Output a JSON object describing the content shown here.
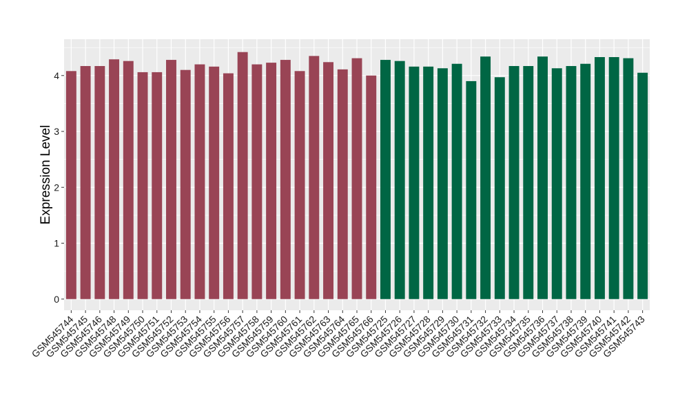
{
  "chart_data": {
    "type": "bar",
    "title": "",
    "xlabel": "",
    "ylabel": "Expression Level",
    "ylim": [
      -0.2,
      4.65
    ],
    "yticks": [
      0,
      1,
      2,
      3,
      4
    ],
    "grid": true,
    "legend": "none",
    "categories": [
      "GSM545744",
      "GSM545745",
      "GSM545746",
      "GSM545748",
      "GSM545749",
      "GSM545750",
      "GSM545751",
      "GSM545752",
      "GSM545753",
      "GSM545754",
      "GSM545755",
      "GSM545756",
      "GSM545757",
      "GSM545758",
      "GSM545759",
      "GSM545760",
      "GSM545761",
      "GSM545762",
      "GSM545763",
      "GSM545764",
      "GSM545765",
      "GSM545766",
      "GSM545725",
      "GSM545726",
      "GSM545727",
      "GSM545728",
      "GSM545729",
      "GSM545730",
      "GSM545731",
      "GSM545732",
      "GSM545733",
      "GSM545734",
      "GSM545735",
      "GSM545736",
      "GSM545737",
      "GSM545738",
      "GSM545739",
      "GSM545740",
      "GSM545741",
      "GSM545742",
      "GSM545743"
    ],
    "values": [
      4.08,
      4.17,
      4.17,
      4.29,
      4.26,
      4.06,
      4.06,
      4.28,
      4.1,
      4.2,
      4.16,
      4.04,
      4.42,
      4.2,
      4.23,
      4.28,
      4.08,
      4.35,
      4.24,
      4.11,
      4.31,
      4.0,
      4.28,
      4.26,
      4.16,
      4.16,
      4.13,
      4.21,
      3.9,
      4.34,
      3.97,
      4.17,
      4.17,
      4.34,
      4.13,
      4.17,
      4.21,
      4.33,
      4.33,
      4.31,
      4.05
    ],
    "colors": [
      "#994455",
      "#994455",
      "#994455",
      "#994455",
      "#994455",
      "#994455",
      "#994455",
      "#994455",
      "#994455",
      "#994455",
      "#994455",
      "#994455",
      "#994455",
      "#994455",
      "#994455",
      "#994455",
      "#994455",
      "#994455",
      "#994455",
      "#994455",
      "#994455",
      "#994455",
      "#006644",
      "#006644",
      "#006644",
      "#006644",
      "#006644",
      "#006644",
      "#006644",
      "#006644",
      "#006644",
      "#006644",
      "#006644",
      "#006644",
      "#006644",
      "#006644",
      "#006644",
      "#006644",
      "#006644",
      "#006644",
      "#006644"
    ],
    "panel_background": "#EBEBEB",
    "grid_color": "#FFFFFF"
  }
}
